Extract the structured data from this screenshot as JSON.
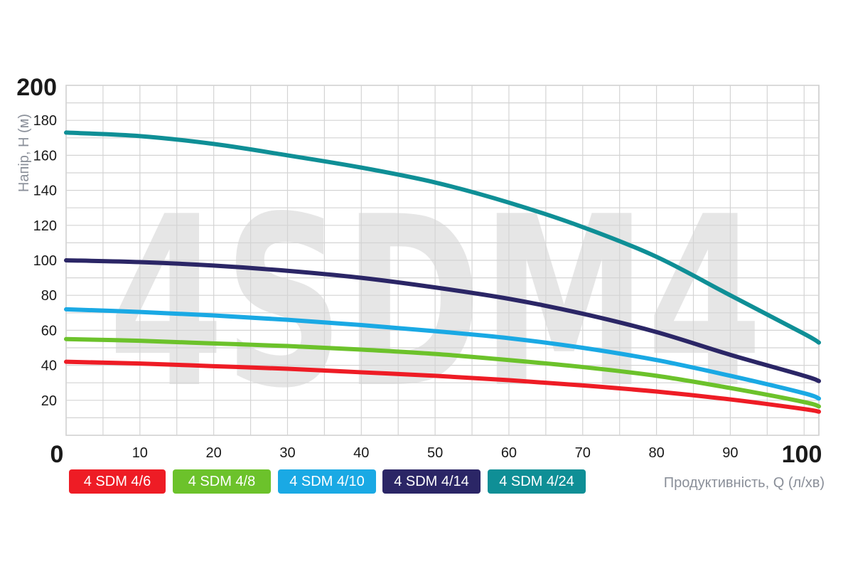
{
  "chart_data": {
    "type": "line",
    "watermark": "4SDM4",
    "xlabel": "Продуктивність, Q (л/хв)",
    "ylabel": "Напір, H (м)",
    "xlim": [
      0,
      102
    ],
    "ylim": [
      0,
      200
    ],
    "x_ticks": [
      "0",
      "10",
      "20",
      "30",
      "40",
      "50",
      "60",
      "70",
      "80",
      "90",
      "100"
    ],
    "y_ticks": [
      "20",
      "40",
      "60",
      "80",
      "100",
      "120",
      "140",
      "160",
      "180",
      "200"
    ],
    "grid": true,
    "legend_position": "bottom-left",
    "x": [
      0,
      10,
      20,
      30,
      40,
      50,
      60,
      70,
      80,
      90,
      100,
      102
    ],
    "series": [
      {
        "name": "4 SDM 4/6",
        "color": "#ee1c25",
        "values": [
          42,
          41,
          39.5,
          38,
          36,
          34,
          31.5,
          28.5,
          25,
          20.5,
          15,
          13.5
        ]
      },
      {
        "name": "4 SDM 4/8",
        "color": "#6cc22b",
        "values": [
          55,
          54,
          52.5,
          51,
          49,
          46.5,
          43,
          39,
          34,
          27,
          19,
          16.5
        ]
      },
      {
        "name": "4 SDM 4/10",
        "color": "#1aa9e4",
        "values": [
          72,
          70.5,
          68.5,
          66,
          63,
          59.5,
          55.5,
          50,
          43,
          34,
          24,
          21
        ]
      },
      {
        "name": "4 SDM 4/14",
        "color": "#2b2666",
        "values": [
          100,
          99,
          97,
          94,
          90,
          84.5,
          78,
          69.5,
          59,
          46,
          34,
          31
        ]
      },
      {
        "name": "4 SDM 4/24",
        "color": "#0f8f96",
        "values": [
          173,
          171,
          166.5,
          160,
          153,
          144.5,
          133,
          119,
          102,
          80,
          58,
          53
        ]
      }
    ]
  }
}
